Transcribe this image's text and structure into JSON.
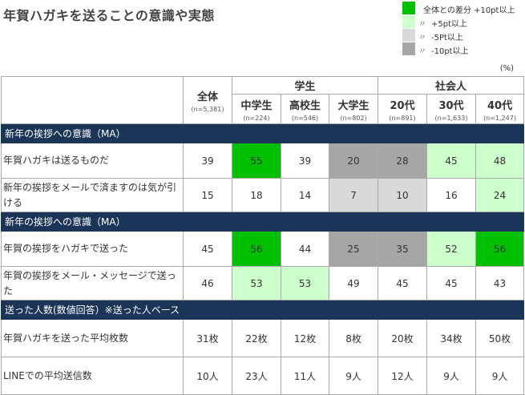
{
  "title": "年賀ハガキを送ることの意識や実態",
  "legend": [
    {
      "marker": "",
      "label": "全体との差分 +10pt以上",
      "color": "#00c000"
    },
    {
      "marker": "〃",
      "label": "+5pt以上",
      "color": "#ccffcc"
    },
    {
      "marker": "〃",
      "label": "-5Pt以上",
      "color": "#d9d9d9"
    },
    {
      "marker": "〃",
      "label": "-10pt以上",
      "color": "#a6a6a6"
    }
  ],
  "unit": "(%)",
  "headers": {
    "total": {
      "label": "全体",
      "n": "(n=5,381)"
    },
    "group_student": "学生",
    "group_worker": "社会人",
    "columns": [
      {
        "label": "中学生",
        "n": "(n=224)"
      },
      {
        "label": "高校生",
        "n": "(n=546)"
      },
      {
        "label": "大学生",
        "n": "(n=802)"
      },
      {
        "label": "20代",
        "n": "(n=891)"
      },
      {
        "label": "30代",
        "n": "(n=1,633)"
      },
      {
        "label": "40代",
        "n": "(n=1,247)"
      }
    ]
  },
  "colors": {
    "plus10": "#00c000",
    "plus5": "#ccffcc",
    "minus5": "#d9d9d9",
    "minus10": "#a6a6a6",
    "none": "#ffffff",
    "section": "#1b3558"
  },
  "chart_data": {
    "type": "table",
    "title": "年賀ハガキを送ることの意識や実態",
    "unit": "(%)",
    "columns": [
      "全体",
      "中学生",
      "高校生",
      "大学生",
      "20代",
      "30代",
      "40代"
    ],
    "sections": [
      {
        "title": "新年の挨拶への意識（MA）",
        "rows": [
          {
            "label": "年賀ハガキは送るものだ",
            "values": [
              "39",
              "55",
              "39",
              "20",
              "28",
              "45",
              "48"
            ],
            "levels": [
              "none",
              "plus10",
              "none",
              "minus10",
              "minus10",
              "plus5",
              "plus5"
            ]
          },
          {
            "label": "新年の挨拶をメールで済ますのは気が引ける",
            "values": [
              "15",
              "18",
              "14",
              "7",
              "10",
              "16",
              "24"
            ],
            "levels": [
              "none",
              "none",
              "none",
              "minus5",
              "minus5",
              "none",
              "plus5"
            ]
          }
        ]
      },
      {
        "title": "新年の挨拶への意識（MA）",
        "rows": [
          {
            "label": "年賀の挨拶をハガキで送った",
            "values": [
              "45",
              "56",
              "44",
              "25",
              "35",
              "52",
              "56"
            ],
            "levels": [
              "none",
              "plus10",
              "none",
              "minus10",
              "minus10",
              "plus5",
              "plus10"
            ]
          },
          {
            "label": "年賀の挨拶をメール・メッセージで送った",
            "values": [
              "46",
              "53",
              "53",
              "49",
              "45",
              "45",
              "43"
            ],
            "levels": [
              "none",
              "plus5",
              "plus5",
              "none",
              "none",
              "none",
              "none"
            ]
          }
        ]
      },
      {
        "title": "送った人数(数値回答）※送った人ベース",
        "rows": [
          {
            "label": "年賀ハガキを送った平均枚数",
            "values": [
              "31枚",
              "22枚",
              "12枚",
              "8枚",
              "20枚",
              "34枚",
              "50枚"
            ],
            "levels": [
              "none",
              "none",
              "none",
              "none",
              "none",
              "none",
              "none"
            ]
          },
          {
            "label": "LINEでの平均送信数",
            "values": [
              "10人",
              "23人",
              "11人",
              "9人",
              "12人",
              "9人",
              "9人"
            ],
            "levels": [
              "none",
              "none",
              "none",
              "none",
              "none",
              "none",
              "none"
            ]
          }
        ]
      }
    ]
  }
}
